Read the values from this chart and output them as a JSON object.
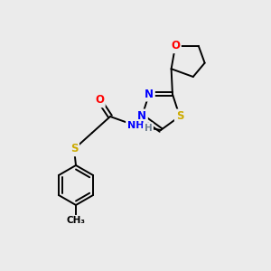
{
  "bg_color": "#ebebeb",
  "atom_colors": {
    "C": "#000000",
    "N": "#0000ff",
    "O": "#ff0000",
    "S": "#ccaa00",
    "H": "#708090"
  },
  "figsize": [
    3.0,
    3.0
  ],
  "dpi": 100
}
